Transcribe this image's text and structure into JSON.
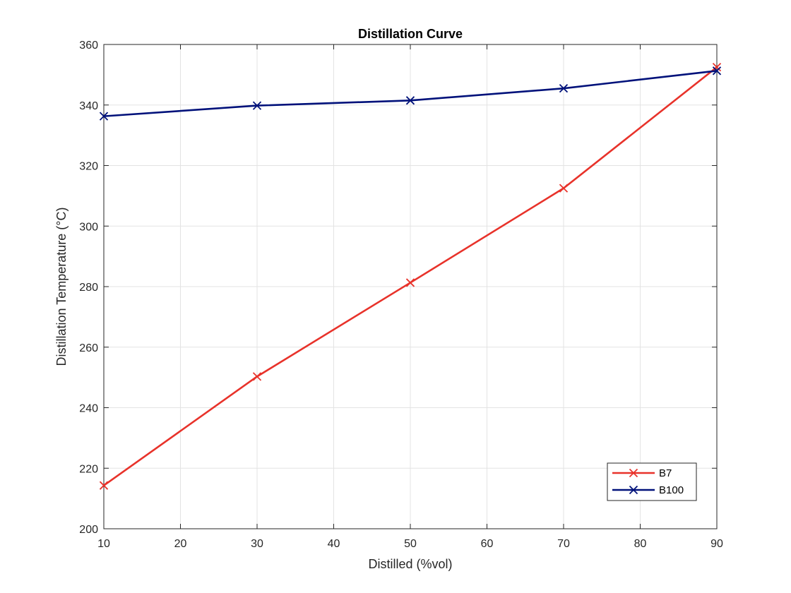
{
  "chart_data": {
    "type": "line",
    "title": "Distillation Curve",
    "xlabel": "Distilled (%vol)",
    "ylabel": "Distillation Temperature (°C)",
    "xlim": [
      10,
      90
    ],
    "ylim": [
      200,
      360
    ],
    "xticks": [
      10,
      20,
      30,
      40,
      50,
      60,
      70,
      80,
      90
    ],
    "yticks": [
      200,
      220,
      240,
      260,
      280,
      300,
      320,
      340,
      360
    ],
    "grid": true,
    "legend_position": "bottom-right",
    "x": [
      10,
      30,
      50,
      70,
      90
    ],
    "series": [
      {
        "name": "B7",
        "color": "#e8322a",
        "marker": "x",
        "values": [
          214.3,
          250.3,
          281.3,
          312.5,
          352.5
        ]
      },
      {
        "name": "B100",
        "color": "#00117a",
        "marker": "x",
        "values": [
          336.3,
          339.8,
          341.5,
          345.5,
          351.3
        ]
      }
    ]
  }
}
